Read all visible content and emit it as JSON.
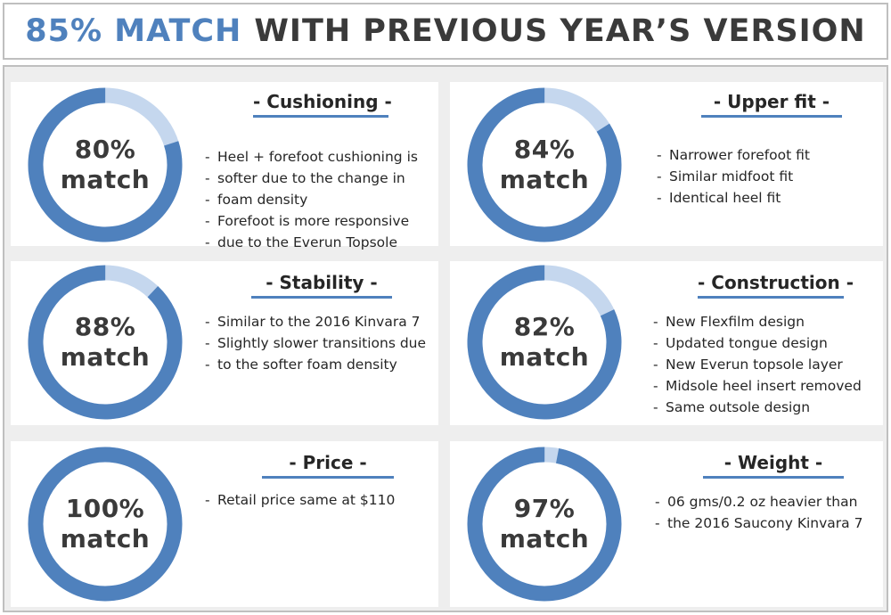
{
  "title": {
    "accent": "85% MATCH",
    "rest": "WITH PREVIOUS YEAR’S VERSION"
  },
  "colors": {
    "ring_main": "#4f81bd",
    "ring_remainder": "#c5d7ee",
    "heading_underline": "#4f81bd"
  },
  "cards": [
    {
      "heading": "- Cushioning -",
      "percent": 80,
      "ring_line1": "80%",
      "ring_line2": "match",
      "bullets": [
        "Heel + forefoot cushioning is",
        "softer due to the change in",
        "foam density",
        "Forefoot is more responsive",
        "due to the Everun Topsole"
      ]
    },
    {
      "heading": "- Upper fit -",
      "percent": 84,
      "ring_line1": "84%",
      "ring_line2": "match",
      "bullets": [
        "Narrower forefoot fit",
        "Similar midfoot fit",
        "Identical heel fit"
      ]
    },
    {
      "heading": "- Stability -",
      "percent": 88,
      "ring_line1": "88%",
      "ring_line2": "match",
      "bullets": [
        "Similar to the 2016 Kinvara 7",
        "Slightly slower transitions due",
        "to the softer foam density"
      ]
    },
    {
      "heading": "- Construction -",
      "percent": 82,
      "ring_line1": "82%",
      "ring_line2": "match",
      "bullets": [
        "New Flexfilm design",
        "Updated tongue design",
        "New Everun topsole layer",
        "Midsole heel insert removed",
        "Same outsole design"
      ]
    },
    {
      "heading": "- Price -",
      "percent": 100,
      "ring_line1": "100%",
      "ring_line2": "match",
      "bullets": [
        " Retail price same at $110"
      ]
    },
    {
      "heading": "- Weight -",
      "percent": 97,
      "ring_line1": "97%",
      "ring_line2": "match",
      "bullets": [
        "06 gms/0.2 oz heavier than",
        "the 2016 Saucony Kinvara 7"
      ]
    }
  ]
}
